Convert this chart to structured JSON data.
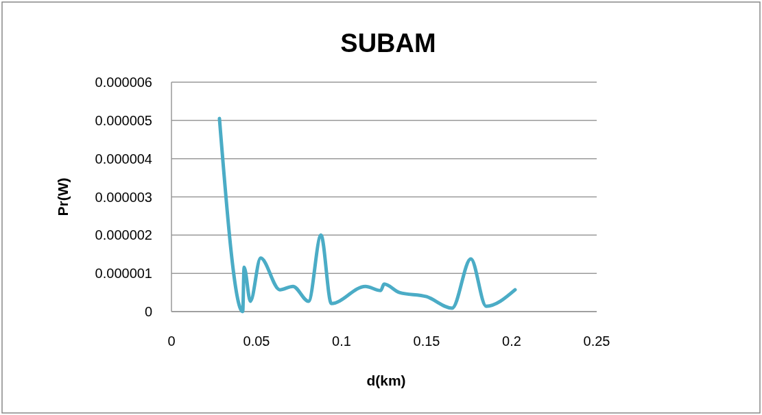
{
  "chart_data": {
    "type": "line",
    "title": "SUBAM",
    "xlabel": "d(km)",
    "ylabel": "Pr(W)",
    "x": [
      0.0282,
      0.0419,
      0.0427,
      0.0464,
      0.0524,
      0.0637,
      0.0714,
      0.0806,
      0.0879,
      0.094,
      0.114,
      0.123,
      0.125,
      0.134,
      0.15,
      0.165,
      0.176,
      0.185,
      0.202
    ],
    "series": [
      {
        "color": "#4bacc6",
        "values": [
          5.05e-06,
          0,
          1.16e-06,
          2.7e-07,
          1.4e-06,
          5.7e-07,
          6.6e-07,
          2.7e-07,
          2e-06,
          2.1e-07,
          6.6e-07,
          5.5e-07,
          7.2e-07,
          5e-07,
          3.9e-07,
          9e-08,
          1.38e-06,
          1.4e-07,
          5.7e-07
        ]
      }
    ],
    "xlim": [
      0,
      0.25
    ],
    "xticks": [
      0,
      0.05,
      0.1,
      0.15,
      0.2,
      0.25
    ],
    "ylim": [
      0,
      6e-06
    ],
    "yticks": [
      {
        "value": 0,
        "label": "0"
      },
      {
        "value": 1e-06,
        "label": "0.000001"
      },
      {
        "value": 2e-06,
        "label": "0.000002"
      },
      {
        "value": 3e-06,
        "label": "0.000003"
      },
      {
        "value": 4e-06,
        "label": "0.000004"
      },
      {
        "value": 5e-06,
        "label": "0.000005"
      },
      {
        "value": 6e-06,
        "label": "0.000006"
      }
    ],
    "grid": "y",
    "marker": "none",
    "line_style": "solid"
  }
}
